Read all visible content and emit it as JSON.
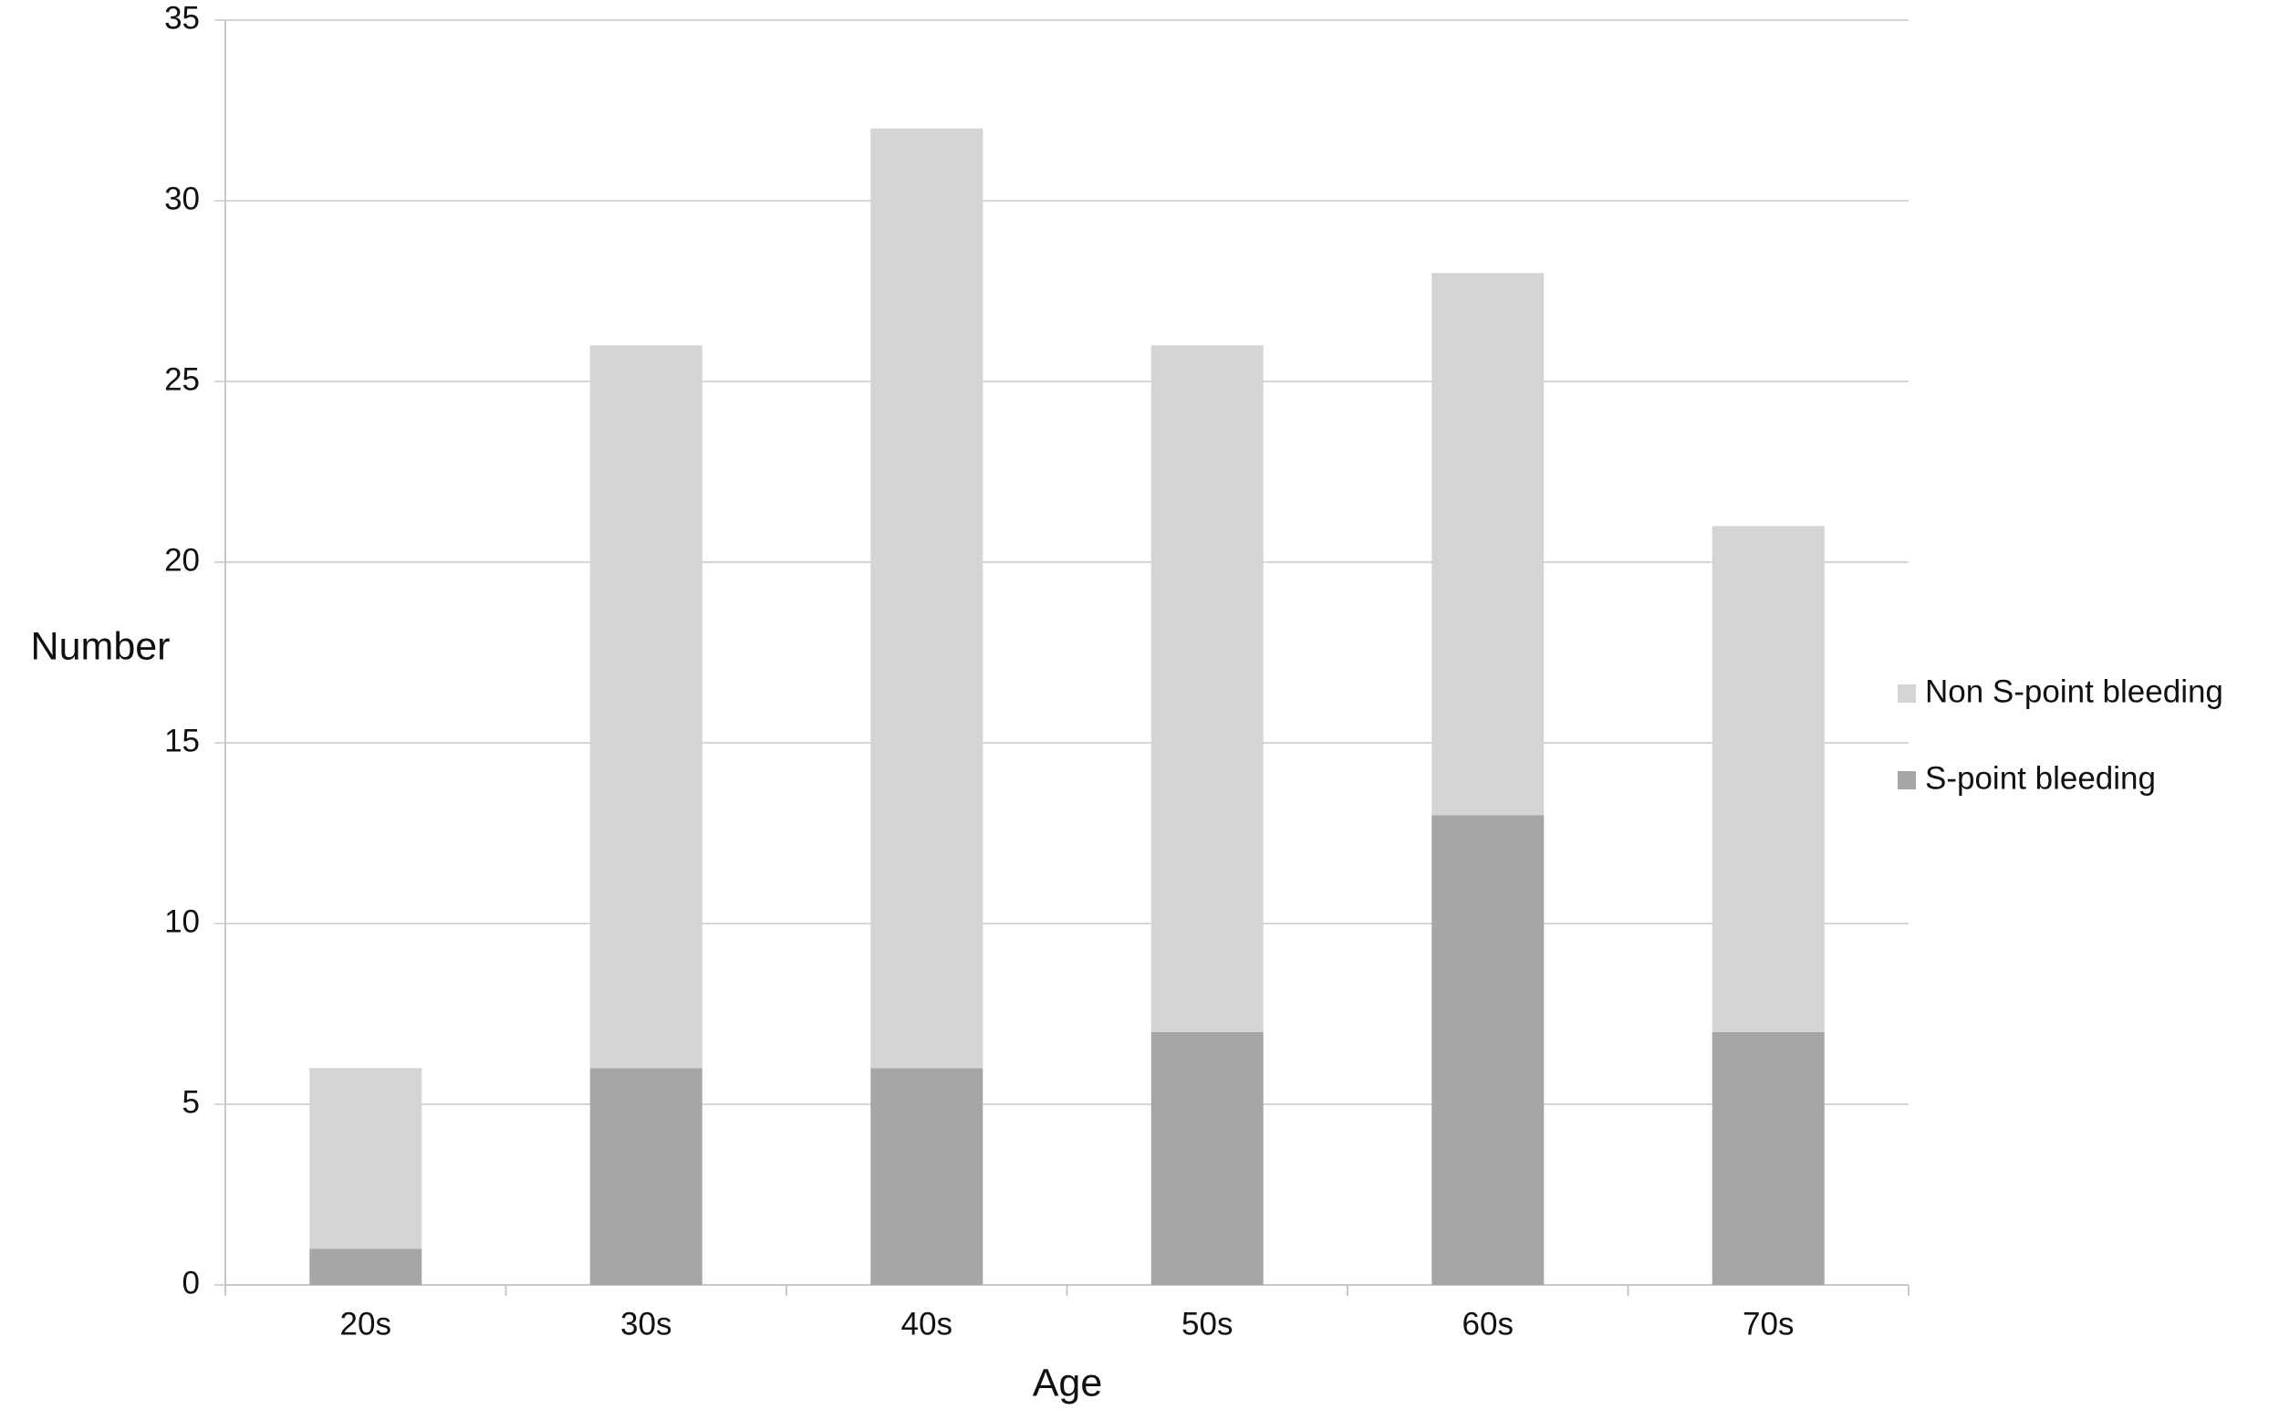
{
  "chart_data": {
    "type": "stacked-bar",
    "categories": [
      "20s",
      "30s",
      "40s",
      "50s",
      "60s",
      "70s"
    ],
    "series": [
      {
        "name": "S-point bleeding",
        "color": "#a6a6a6",
        "values": [
          1,
          6,
          6,
          7,
          13,
          7
        ]
      },
      {
        "name": "Non S-point bleeding",
        "color": "#d4d4d4",
        "values": [
          5,
          20,
          26,
          19,
          15,
          14
        ]
      }
    ],
    "x_label": "Age",
    "y_label": "Number",
    "ylim": [
      0,
      35
    ],
    "yticks": [
      0,
      5,
      10,
      15,
      20,
      25,
      30,
      35
    ],
    "grid": true,
    "legend": "right"
  }
}
